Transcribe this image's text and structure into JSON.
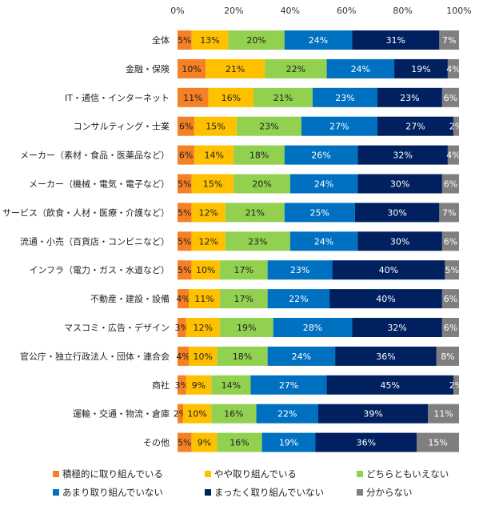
{
  "chart_data": {
    "type": "bar",
    "orientation": "horizontal",
    "stacked": true,
    "title": "",
    "xlabel": "",
    "ylabel": "",
    "xlim": [
      0,
      100
    ],
    "x_ticks": [
      "0%",
      "20%",
      "40%",
      "60%",
      "80%",
      "100%"
    ],
    "x_axis_position": "top",
    "grid": false,
    "legend_position": "bottom",
    "categories": [
      "全体",
      "金融・保険",
      "IT・通信・インターネット",
      "コンサルティング・士業",
      "メーカー（素材・食品・医薬品など）",
      "メーカー（機械・電気・電子など）",
      "サービス（飲食・人材・医療・介護など）",
      "流通・小売（百貨店・コンビニなど）",
      "インフラ（電力・ガス・水道など）",
      "不動産・建設・設備",
      "マスコミ・広告・デザイン",
      "官公庁・独立行政法人・団体・連合会",
      "商社",
      "運輸・交通・物流・倉庫",
      "その他"
    ],
    "series": [
      {
        "name": "積極的に取り組んでいる",
        "color": "#F58025",
        "label_color": "#222222",
        "values": [
          5,
          10,
          11,
          6,
          6,
          5,
          5,
          5,
          5,
          4,
          3,
          4,
          3,
          2,
          5
        ]
      },
      {
        "name": "やや取り組んでいる",
        "color": "#FFC000",
        "label_color": "#222222",
        "values": [
          13,
          21,
          16,
          15,
          14,
          15,
          12,
          12,
          10,
          11,
          12,
          10,
          9,
          10,
          9
        ]
      },
      {
        "name": "どちらともいえない",
        "color": "#92D050",
        "label_color": "#222222",
        "values": [
          20,
          22,
          21,
          23,
          18,
          20,
          21,
          23,
          17,
          17,
          19,
          18,
          14,
          16,
          16
        ]
      },
      {
        "name": "あまり取り組んでいない",
        "color": "#0070C0",
        "label_color": "#ffffff",
        "values": [
          24,
          24,
          23,
          27,
          26,
          24,
          25,
          24,
          23,
          22,
          28,
          24,
          27,
          22,
          19
        ]
      },
      {
        "name": "まったく取り組んでいない",
        "color": "#002060",
        "label_color": "#ffffff",
        "values": [
          31,
          19,
          23,
          27,
          32,
          30,
          30,
          30,
          40,
          40,
          32,
          36,
          45,
          39,
          36
        ]
      },
      {
        "name": "分からない",
        "color": "#7F7F7F",
        "label_color": "#ffffff",
        "values": [
          7,
          4,
          6,
          2,
          4,
          6,
          7,
          6,
          5,
          6,
          6,
          8,
          2,
          11,
          15
        ]
      }
    ],
    "value_suffix": "%"
  }
}
